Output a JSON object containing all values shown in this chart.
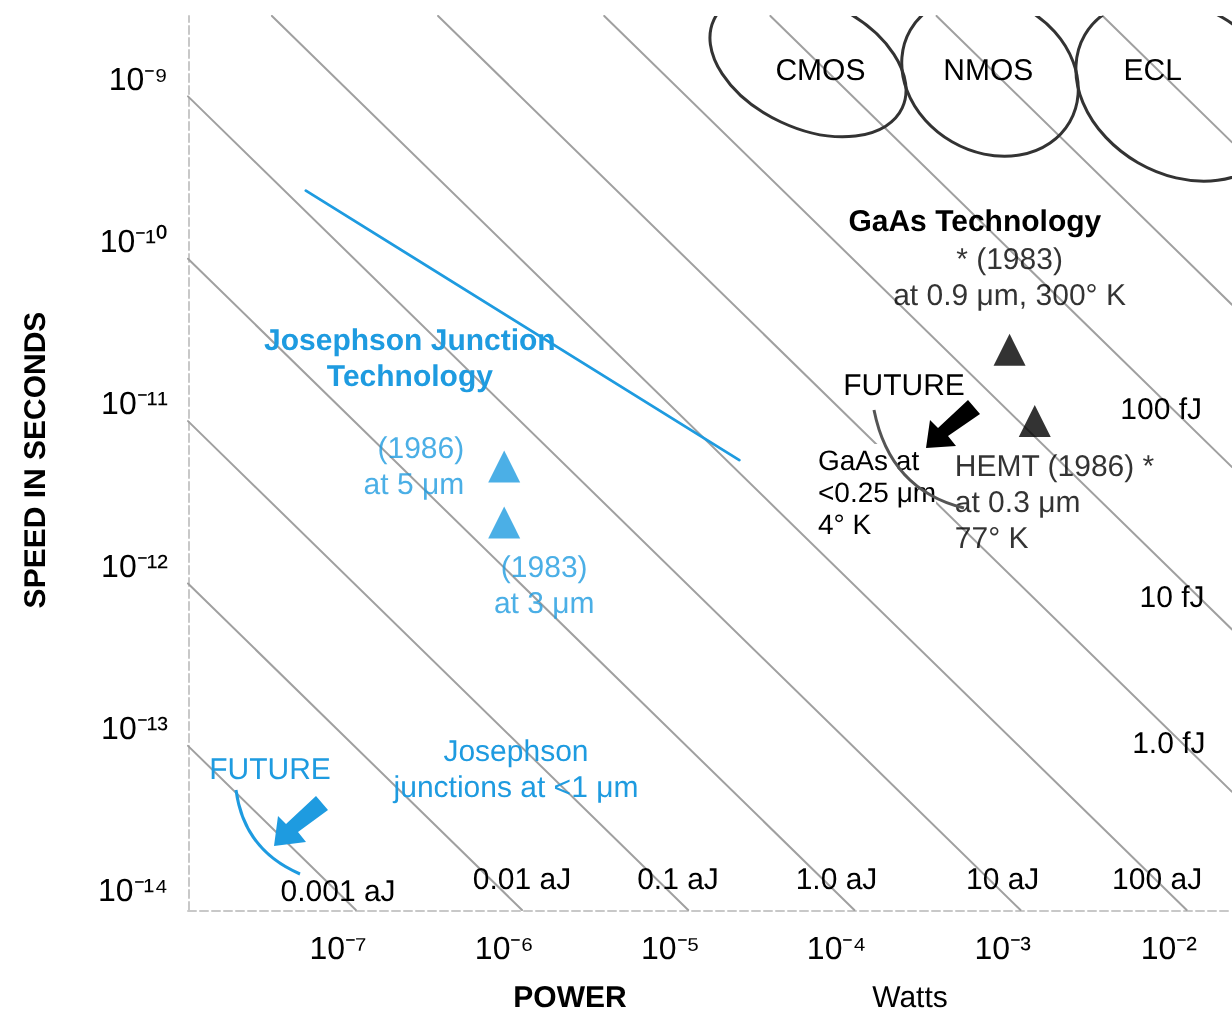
{
  "chart_data": {
    "type": "line",
    "log": "xy",
    "xlabel": "POWER",
    "ylabel": "SPEED IN SECONDS",
    "xlim": [
      1.25e-08,
      0.024
    ],
    "ylim": [
      7.8e-15,
      2.5e-09
    ],
    "xticks": [
      {
        "value": 1e-07,
        "label": "10⁻⁷"
      },
      {
        "value": 1e-06,
        "label": "10⁻⁶"
      },
      {
        "value": 1e-05,
        "label": "10⁻⁵"
      },
      {
        "value": 0.0001,
        "label": "10⁻⁴"
      },
      {
        "value": 0.001,
        "label": "10⁻³"
      },
      {
        "value": 0.01,
        "label": "10⁻²"
      }
    ],
    "yticks": [
      {
        "value": 1e-14,
        "label": "10⁻¹⁴"
      },
      {
        "value": 1e-13,
        "label": "10⁻¹³"
      },
      {
        "value": 1e-12,
        "label": "10⁻¹²"
      },
      {
        "value": 1e-11,
        "label": "10⁻¹¹"
      },
      {
        "value": 1e-10,
        "label": "10⁻¹⁰"
      },
      {
        "value": 1e-09,
        "label": "10⁻⁹"
      }
    ],
    "series": [
      {
        "type": "line",
        "marker": "none",
        "color": "#a0a0a0",
        "x": [
          1.25e-08,
          1.28e-07
        ],
        "values": [
          8e-14,
          7.8e-15
        ]
      },
      {
        "type": "line",
        "marker": "none",
        "color": "#a0a0a0",
        "x": [
          1.25e-08,
          1.28e-06
        ],
        "values": [
          8e-13,
          7.8e-15
        ]
      },
      {
        "type": "line",
        "marker": "none",
        "color": "#a0a0a0",
        "x": [
          1.25e-08,
          1.28e-05
        ],
        "values": [
          8e-12,
          7.8e-15
        ]
      },
      {
        "type": "line",
        "marker": "none",
        "color": "#a0a0a0",
        "x": [
          1.25e-08,
          0.000128
        ],
        "values": [
          8e-11,
          7.8e-15
        ]
      },
      {
        "type": "line",
        "marker": "none",
        "color": "#a0a0a0",
        "x": [
          1.25e-08,
          0.00128
        ],
        "values": [
          8e-10,
          7.8e-15
        ]
      },
      {
        "type": "line",
        "marker": "none",
        "color": "#a0a0a0",
        "x": [
          4e-08,
          0.0128
        ],
        "values": [
          2.5e-09,
          7.8e-15
        ]
      },
      {
        "type": "line",
        "marker": "none",
        "color": "#a0a0a0",
        "x": [
          4e-07,
          0.024
        ],
        "values": [
          2.5e-09,
          4.17e-14
        ]
      },
      {
        "type": "line",
        "marker": "none",
        "color": "#a0a0a0",
        "x": [
          4e-06,
          0.024
        ],
        "values": [
          2.5e-09,
          4.17e-13
        ]
      },
      {
        "type": "line",
        "marker": "none",
        "color": "#a0a0a0",
        "x": [
          4e-05,
          0.024
        ],
        "values": [
          2.5e-09,
          4.17e-12
        ]
      },
      {
        "type": "line",
        "marker": "none",
        "color": "#a0a0a0",
        "x": [
          0.0004,
          0.024
        ],
        "values": [
          2.5e-09,
          4.17e-11
        ]
      },
      {
        "type": "line",
        "marker": "none",
        "color": "#a0a0a0",
        "x": [
          0.004,
          0.024
        ],
        "values": [
          2.5e-09,
          4.17e-10
        ]
      },
      {
        "marker": "none",
        "name": "Josephson Junction\nTechnology",
        "color": "#1e9be0",
        "x": [
          6.4e-08,
          2.6e-05
        ],
        "values": [
          2.1e-10,
          4.6e-12
        ]
      },
      {
        "type": "scatter",
        "marker": "triangle",
        "color": "#1e9be0",
        "x": [
          1e-06,
          1e-06
        ],
        "values": [
          4.2e-12,
          1.9e-12
        ],
        "value_labels": [
          "(1986)\nat 5 μm",
          "(1983)\nat 3 μm"
        ]
      },
      {
        "type": "scatter",
        "marker": "triangle",
        "color": "#000000",
        "x": [
          0.0011,
          0.00156
        ],
        "values": [
          2.2e-11,
          8e-12
        ],
        "value_labels": [
          "* (1983)\nat 0.9 μm, 300° K",
          "HEMT (1986) *\nat 0.3 μm\n77° K"
        ]
      }
    ],
    "annotations": [
      {
        "text": "CMOS",
        "x": 8e-05,
        "y": 1.15e-09
      },
      {
        "text": "NMOS",
        "x": 0.00082,
        "y": 1.15e-09
      },
      {
        "text": "ECL",
        "x": 0.008,
        "y": 1.15e-09
      },
      {
        "text": "GaAs Technology",
        "x": 0.00068,
        "y": 1.35e-10
      },
      "FUTURE",
      "GaAs at\n<0.25 μm\n4° K",
      "FUTURE",
      "Josephson\njunctions at <1 μm",
      {
        "text": "0.001 aJ",
        "x": 1e-07,
        "y": 1e-14
      },
      "0.01 aJ",
      "0.1 aJ",
      {
        "text": "1.0 aJ",
        "x": 0.0001,
        "y": 1.19e-14
      },
      {
        "text": "10 aJ",
        "x": 0.001,
        "y": 1.19e-14
      },
      {
        "text": "100 aJ",
        "x": 0.0085,
        "y": 1.19e-14
      },
      {
        "text": "100 fJ",
        "x": 0.009,
        "y": 9.4e-12
      },
      "10 fJ",
      {
        "text": "1.0 fJ",
        "x": 0.01,
        "y": 8.2e-14
      },
      "Watts"
    ]
  }
}
